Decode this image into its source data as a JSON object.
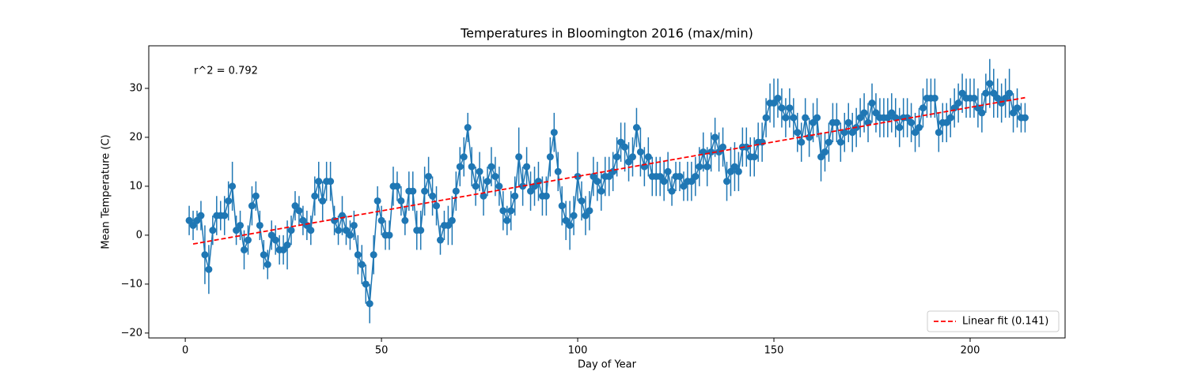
{
  "chart_data": {
    "type": "errorbar",
    "title": "Temperatures in Bloomington 2016 (max/min)",
    "x_label": "Day of Year",
    "y_label": "Mean Temperature (C)",
    "annotation": "r^2 = 0.792",
    "x": [
      1,
      2,
      3,
      4,
      5,
      6,
      7,
      8,
      9,
      10,
      11,
      12,
      13,
      14,
      15,
      16,
      17,
      18,
      19,
      20,
      21,
      22,
      23,
      24,
      25,
      26,
      27,
      28,
      29,
      30,
      31,
      32,
      33,
      34,
      35,
      36,
      37,
      38,
      39,
      40,
      41,
      42,
      43,
      44,
      45,
      46,
      47,
      48,
      49,
      50,
      51,
      52,
      53,
      54,
      55,
      56,
      57,
      58,
      59,
      60,
      61,
      62,
      63,
      64,
      65,
      66,
      67,
      68,
      69,
      70,
      71,
      72,
      73,
      74,
      75,
      76,
      77,
      78,
      79,
      80,
      81,
      82,
      83,
      84,
      85,
      86,
      87,
      88,
      89,
      90,
      91,
      92,
      93,
      94,
      95,
      96,
      97,
      98,
      99,
      100,
      101,
      102,
      103,
      104,
      105,
      106,
      107,
      108,
      109,
      110,
      111,
      112,
      113,
      114,
      115,
      116,
      117,
      118,
      119,
      120,
      121,
      122,
      123,
      124,
      125,
      126,
      127,
      128,
      129,
      130,
      131,
      132,
      133,
      134,
      135,
      136,
      137,
      138,
      139,
      140,
      141,
      142,
      143,
      144,
      145,
      146,
      147,
      148,
      149,
      150,
      151,
      152,
      153,
      154,
      155,
      156,
      157,
      158,
      159,
      160,
      161,
      162,
      163,
      164,
      165,
      166,
      167,
      168,
      169,
      170,
      171,
      172,
      173,
      174,
      175,
      176,
      177,
      178,
      179,
      180,
      181,
      182,
      183,
      184,
      185,
      186,
      187,
      188,
      189,
      190,
      191,
      192,
      193,
      194,
      195,
      196,
      197,
      198,
      199,
      200,
      201,
      202,
      203,
      204,
      205,
      206,
      207,
      208,
      209,
      210,
      211,
      212,
      213,
      214
    ],
    "series": [
      {
        "color": "#1f77b4",
        "values": [
          3,
          2,
          3,
          4,
          -4,
          -7,
          1,
          4,
          4,
          4,
          7,
          10,
          1,
          2,
          -3,
          -1,
          6,
          8,
          2,
          -4,
          -6,
          0,
          -1,
          -3,
          -3,
          -2,
          1,
          6,
          5,
          3,
          2,
          1,
          8,
          11,
          7,
          11,
          11,
          3,
          1,
          4,
          1,
          0,
          2,
          -4,
          -6,
          -10,
          -14,
          -4,
          7,
          3,
          0,
          0,
          10,
          10,
          7,
          3,
          9,
          9,
          1,
          1,
          9,
          12,
          8,
          6,
          -1,
          2,
          2,
          3,
          9,
          14,
          16,
          22,
          14,
          10,
          13,
          8,
          11,
          14,
          12,
          10,
          5,
          3,
          5,
          8,
          16,
          10,
          14,
          9,
          10,
          11,
          8,
          8,
          16,
          21,
          13,
          6,
          3,
          2,
          4,
          12,
          7,
          4,
          5,
          12,
          11,
          9,
          12,
          12,
          13,
          16,
          19,
          18,
          15,
          16,
          22,
          17,
          14,
          16,
          12,
          12,
          12,
          11,
          13,
          9,
          12,
          12,
          10,
          11,
          11,
          12,
          14,
          17,
          14,
          17,
          20,
          17,
          18,
          11,
          13,
          14,
          13,
          18,
          18,
          16,
          16,
          19,
          19,
          24,
          27,
          27,
          28,
          26,
          24,
          26,
          24,
          21,
          19,
          24,
          20,
          23,
          24,
          16,
          17,
          19,
          23,
          23,
          19,
          21,
          23,
          21,
          22,
          24,
          25,
          23,
          27,
          25,
          24,
          24,
          24,
          25,
          24,
          22,
          24,
          24,
          23,
          21,
          22,
          26,
          28,
          28,
          28,
          21,
          23,
          23,
          24,
          26,
          27,
          29,
          28,
          28,
          28,
          26,
          25,
          29,
          31,
          29,
          28,
          27,
          28,
          29,
          25,
          26,
          24,
          24
        ],
        "errors": [
          3,
          3,
          2,
          3,
          6,
          5,
          3,
          4,
          3,
          4,
          4,
          5,
          3,
          3,
          4,
          3,
          4,
          3,
          3,
          3,
          3,
          3,
          3,
          3,
          3,
          5,
          3,
          3,
          3,
          3,
          3,
          3,
          4,
          4,
          4,
          4,
          4,
          3,
          3,
          4,
          3,
          3,
          3,
          4,
          4,
          4,
          4,
          4,
          3,
          3,
          3,
          3,
          4,
          3,
          3,
          3,
          4,
          4,
          4,
          4,
          5,
          4,
          4,
          4,
          3,
          3,
          4,
          5,
          4,
          4,
          4,
          3,
          4,
          4,
          4,
          4,
          3,
          4,
          4,
          4,
          4,
          3,
          4,
          4,
          6,
          4,
          4,
          4,
          4,
          4,
          4,
          4,
          4,
          4,
          4,
          4,
          4,
          5,
          4,
          5,
          4,
          4,
          4,
          4,
          4,
          4,
          4,
          4,
          4,
          4,
          4,
          5,
          4,
          4,
          4,
          5,
          4,
          4,
          4,
          4,
          4,
          4,
          4,
          3,
          3,
          3,
          3,
          4,
          4,
          4,
          4,
          4,
          4,
          4,
          4,
          4,
          4,
          4,
          5,
          5,
          4,
          4,
          4,
          4,
          4,
          4,
          4,
          4,
          4,
          5,
          4,
          4,
          4,
          4,
          4,
          4,
          4,
          4,
          4,
          4,
          4,
          5,
          4,
          4,
          4,
          4,
          4,
          4,
          4,
          4,
          4,
          4,
          4,
          4,
          4,
          4,
          4,
          4,
          4,
          4,
          4,
          4,
          4,
          4,
          4,
          4,
          4,
          4,
          4,
          4,
          4,
          4,
          4,
          4,
          4,
          4,
          4,
          4,
          4,
          4,
          4,
          4,
          4,
          4,
          5,
          5,
          4,
          4,
          4,
          5,
          4,
          4,
          3,
          3
        ]
      }
    ],
    "fit": {
      "name": "Linear fit (0.141)",
      "color": "#ff0000",
      "x": [
        2,
        214
      ],
      "values": [
        -1.8,
        28.1
      ]
    },
    "xlim": [
      -9.3,
      224.2
    ],
    "ylim": [
      -21,
      38.7
    ],
    "xticks": [
      0,
      50,
      100,
      150,
      200
    ],
    "yticks": [
      {
        "value": -20,
        "label": "−20"
      },
      {
        "value": -10,
        "label": "−10"
      },
      0,
      10,
      20,
      30
    ],
    "legend": "lower right"
  }
}
